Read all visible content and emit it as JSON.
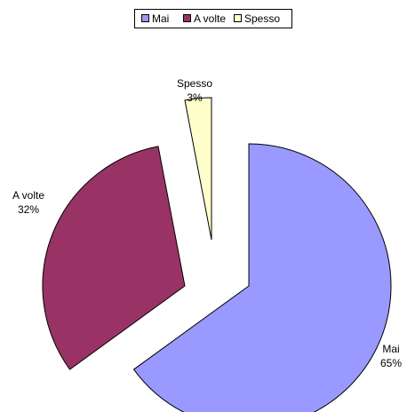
{
  "chart_data": {
    "type": "pie",
    "title": "",
    "legend": {
      "placement": "top",
      "items": [
        {
          "label": "Mai",
          "color": "#9999ff"
        },
        {
          "label": "A volte",
          "color": "#993366"
        },
        {
          "label": "Spesso",
          "color": "#ffffcc"
        }
      ]
    },
    "slices": [
      {
        "label": "Mai",
        "value": 65,
        "value_label": "65%",
        "color": "#9999ff",
        "exploded": true
      },
      {
        "label": "A volte",
        "value": 32,
        "value_label": "32%",
        "color": "#993366",
        "exploded": true
      },
      {
        "label": "Spesso",
        "value": 3,
        "value_label": "3%",
        "color": "#ffffcc",
        "exploded": true
      }
    ],
    "start_angle_deg": 0,
    "direction": "clockwise"
  }
}
